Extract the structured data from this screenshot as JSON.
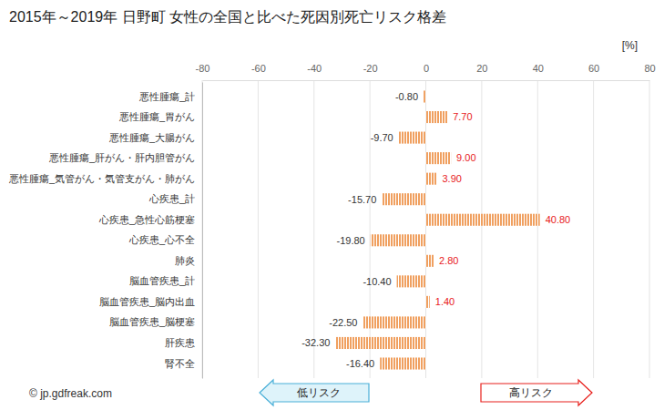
{
  "chart_data": {
    "type": "bar",
    "orientation": "horizontal",
    "title": "2015年～2019年 日野町 女性の全国と比べた死因別死亡リスク格差",
    "xlabel": "[%]",
    "categories": [
      "悪性腫瘍_計",
      "悪性腫瘍_胃がん",
      "悪性腫瘍_大腸がん",
      "悪性腫瘍_肝がん・肝内胆管がん",
      "悪性腫瘍_気管がん・気管支がん・肺がん",
      "心疾患_計",
      "心疾患_急性心筋梗塞",
      "心疾患_心不全",
      "肺炎",
      "脳血管疾患_計",
      "脳血管疾患_脳内出血",
      "脳血管疾患_脳梗塞",
      "肝疾患",
      "腎不全"
    ],
    "values": [
      -0.8,
      7.7,
      -9.7,
      9.0,
      3.9,
      -15.7,
      40.8,
      -19.8,
      2.8,
      -10.4,
      1.4,
      -22.5,
      -32.3,
      -16.4
    ],
    "value_labels": [
      "-0.80",
      "7.70",
      "-9.70",
      "9.00",
      "3.90",
      "-15.70",
      "40.80",
      "-19.80",
      "2.80",
      "-10.40",
      "1.40",
      "-22.50",
      "-32.30",
      "-16.40"
    ],
    "data_labels": true,
    "color": "#f0a060",
    "xlim": [
      -80,
      80
    ],
    "xticks": [
      -80,
      -60,
      -40,
      -20,
      0,
      20,
      40,
      60,
      80
    ],
    "grid": true,
    "annotations": [
      "低リスク",
      "高リスク"
    ],
    "source": "© jp.gdfreak.com"
  }
}
